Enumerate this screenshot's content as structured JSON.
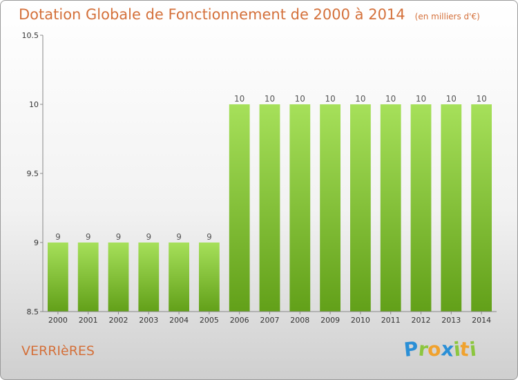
{
  "chart_data": {
    "type": "bar",
    "title": "Dotation Globale de Fonctionnement de 2000 à 2014",
    "unit_note": "(en milliers d'€)",
    "categories": [
      "2000",
      "2001",
      "2002",
      "2003",
      "2004",
      "2005",
      "2006",
      "2007",
      "2008",
      "2009",
      "2010",
      "2011",
      "2012",
      "2013",
      "2014"
    ],
    "values": [
      9,
      9,
      9,
      9,
      9,
      9,
      10,
      10,
      10,
      10,
      10,
      10,
      10,
      10,
      10
    ],
    "data_labels": [
      "9",
      "9",
      "9",
      "9",
      "9",
      "9",
      "10",
      "10",
      "10",
      "10",
      "10",
      "10",
      "10",
      "10",
      "10"
    ],
    "ylim": [
      8.5,
      10.5
    ],
    "yticks": [
      "8.5",
      "9",
      "9.5",
      "10",
      "10.5"
    ],
    "grid": false,
    "bar_color_light": "#a6e05a",
    "bar_color_dark": "#62a019"
  },
  "commune_name": "VERRIèRES",
  "logo": {
    "text": "Proxiti",
    "letters": [
      {
        "ch": "P",
        "color": "#2a8fd6"
      },
      {
        "ch": "r",
        "color": "#8cc63f"
      },
      {
        "ch": "o",
        "color": "#f0a22e"
      },
      {
        "ch": "x",
        "color": "#2a8fd6"
      },
      {
        "ch": "i",
        "color": "#8cc63f"
      },
      {
        "ch": "t",
        "color": "#f0a22e"
      },
      {
        "ch": "i",
        "color": "#8cc63f"
      }
    ]
  }
}
